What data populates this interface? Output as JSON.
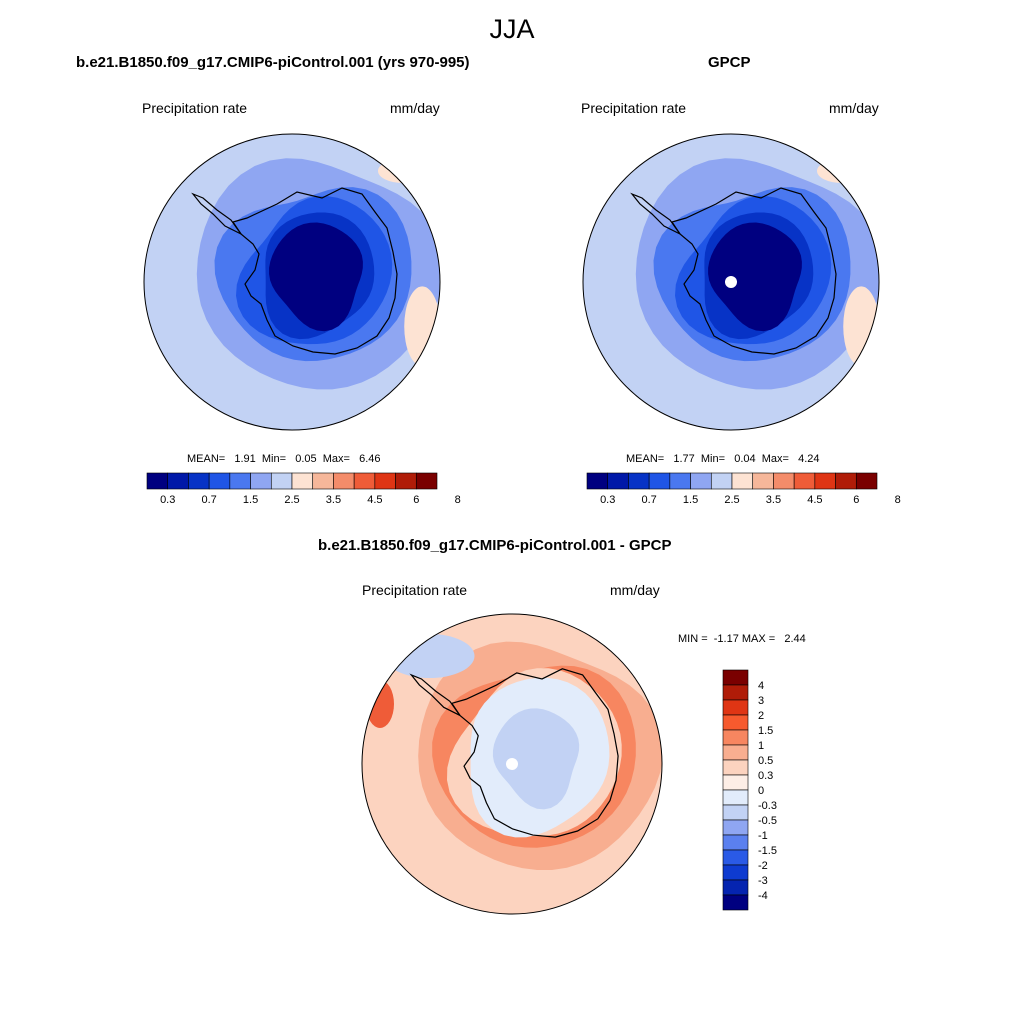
{
  "figure": {
    "title": "JJA"
  },
  "panels": [
    {
      "id": "model",
      "title": "b.e21.B1850.f09_g17.CMIP6-piControl.001 (yrs 970-995)",
      "variable": "Precipitation rate",
      "units": "mm/day",
      "stats": "MEAN=   1.91  Min=   0.05  Max=   6.46",
      "fill_scheme": "absolute",
      "colorbar": {
        "orientation": "horizontal",
        "tick_labels": [
          "0.3",
          "0.7",
          "1.5",
          "2.5",
          "3.5",
          "4.5",
          "6",
          "8"
        ],
        "colors": [
          "#000080",
          "#0018a8",
          "#0733c6",
          "#1f55e6",
          "#4a78f0",
          "#8fa6f2",
          "#c2d2f4",
          "#fde3d3",
          "#f6b79a",
          "#f48c6a",
          "#ef5c38",
          "#df3514",
          "#b01c08",
          "#7a0000"
        ]
      }
    },
    {
      "id": "obs",
      "title": "GPCP",
      "variable": "Precipitation rate",
      "units": "mm/day",
      "stats": "MEAN=   1.77  Min=   0.04  Max=   4.24",
      "fill_scheme": "absolute",
      "colorbar": {
        "orientation": "horizontal",
        "tick_labels": [
          "0.3",
          "0.7",
          "1.5",
          "2.5",
          "3.5",
          "4.5",
          "6",
          "8"
        ],
        "colors": [
          "#000080",
          "#0018a8",
          "#0733c6",
          "#1f55e6",
          "#4a78f0",
          "#8fa6f2",
          "#c2d2f4",
          "#fde3d3",
          "#f6b79a",
          "#f48c6a",
          "#ef5c38",
          "#df3514",
          "#b01c08",
          "#7a0000"
        ]
      }
    },
    {
      "id": "diff",
      "title": "b.e21.B1850.f09_g17.CMIP6-piControl.001 - GPCP",
      "variable": "Precipitation rate",
      "units": "mm/day",
      "stats": "MIN =  -1.17 MAX =   2.44",
      "fill_scheme": "difference",
      "colorbar": {
        "orientation": "vertical",
        "tick_labels": [
          "4",
          "3",
          "2",
          "1.5",
          "1",
          "0.5",
          "0.3",
          "0",
          "-0.3",
          "-0.5",
          "-1",
          "-1.5",
          "-2",
          "-3",
          "-4"
        ],
        "colors": [
          "#7a0000",
          "#b01c08",
          "#df3514",
          "#f65a2e",
          "#f78660",
          "#f8ae90",
          "#fcd3bf",
          "#fdeee6",
          "#e2ecfb",
          "#c2d2f4",
          "#8fa6f2",
          "#5b80ef",
          "#2a5ae6",
          "#0e3bd0",
          "#0524b0",
          "#000080"
        ]
      }
    }
  ]
}
